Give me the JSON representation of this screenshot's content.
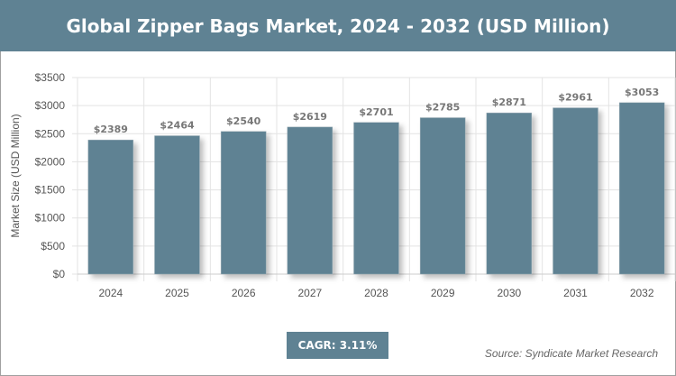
{
  "title": "Global Zipper Bags Market, 2024 - 2032 (USD Million)",
  "cagr": "CAGR: 3.11%",
  "source": "Source: Syndicate Market Research",
  "colors": {
    "bar": "#5f8293",
    "header": "#5f8293"
  },
  "chart_data": {
    "type": "bar",
    "title": "Global Zipper Bags Market, 2024 - 2032 (USD Million)",
    "xlabel": "",
    "ylabel": "Market Size (USD Million)",
    "categories": [
      "2024",
      "2025",
      "2026",
      "2027",
      "2028",
      "2029",
      "2030",
      "2031",
      "2032"
    ],
    "values": [
      2389,
      2464,
      2540,
      2619,
      2701,
      2785,
      2871,
      2961,
      3053
    ],
    "data_labels": [
      "$2389",
      "$2464",
      "$2540",
      "$2619",
      "$2701",
      "$2785",
      "$2871",
      "$2961",
      "$3053"
    ],
    "ylim": [
      0,
      3500
    ],
    "yticks": [
      0,
      500,
      1000,
      1500,
      2000,
      2500,
      3000,
      3500
    ],
    "ytick_labels": [
      "$0",
      "$500",
      "$1000",
      "$1500",
      "$2000",
      "$2500",
      "$3000",
      "$3500"
    ],
    "grid": true,
    "legend": "none"
  }
}
